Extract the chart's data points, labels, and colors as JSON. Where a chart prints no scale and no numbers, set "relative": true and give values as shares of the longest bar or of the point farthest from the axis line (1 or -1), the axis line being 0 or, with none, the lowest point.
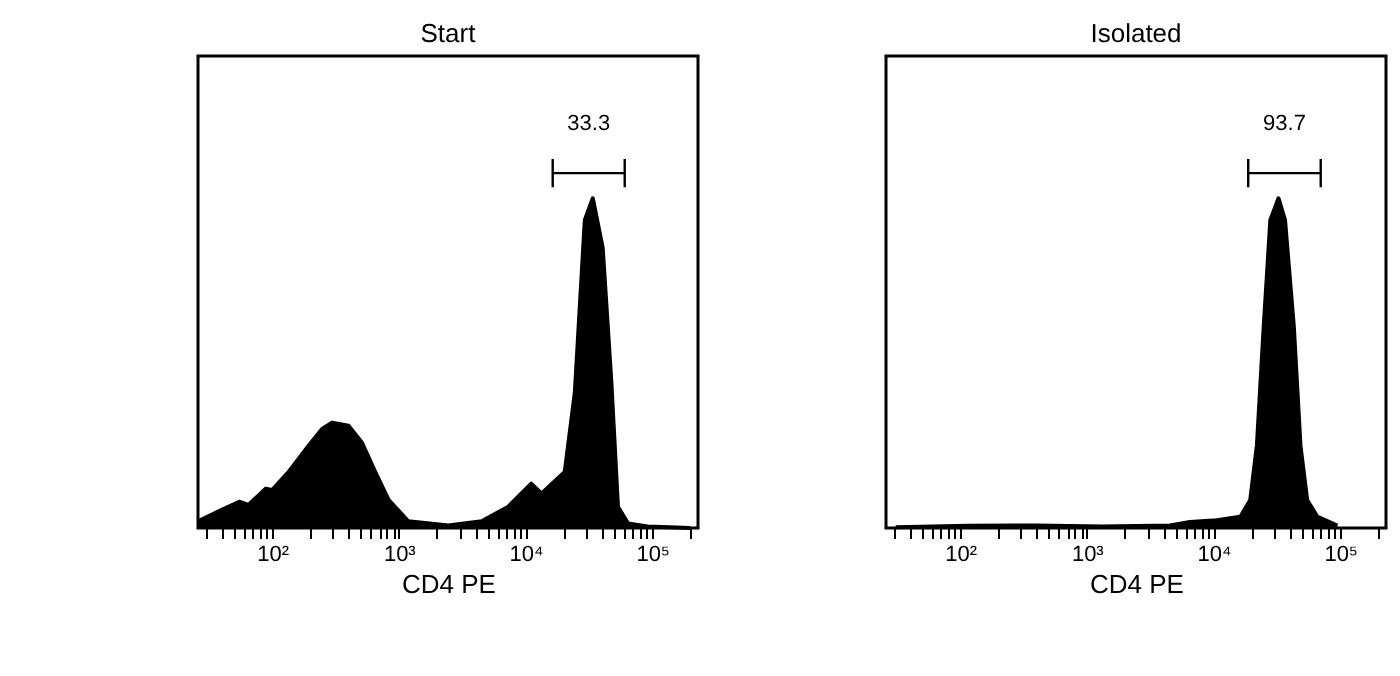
{
  "chart_data": [
    {
      "type": "area",
      "title": "Start",
      "xlabel": "CD4 PE",
      "relative": true,
      "log": "x",
      "tick_labels": "x",
      "grid": false,
      "xlim": [
        26,
        230000
      ],
      "xticks": [
        {
          "value": 30,
          "label": null
        },
        {
          "value": 40,
          "label": null
        },
        {
          "value": 50,
          "label": null
        },
        {
          "value": 60,
          "label": null
        },
        {
          "value": 70,
          "label": null
        },
        {
          "value": 80,
          "label": null
        },
        {
          "value": 90,
          "label": null
        },
        {
          "value": 100,
          "label": "10²"
        },
        {
          "value": 200,
          "label": null
        },
        {
          "value": 300,
          "label": null
        },
        {
          "value": 400,
          "label": null
        },
        {
          "value": 500,
          "label": null
        },
        {
          "value": 600,
          "label": null
        },
        {
          "value": 700,
          "label": null
        },
        {
          "value": 800,
          "label": null
        },
        {
          "value": 900,
          "label": null
        },
        {
          "value": 1000,
          "label": "10³"
        },
        {
          "value": 2000,
          "label": null
        },
        {
          "value": 3000,
          "label": null
        },
        {
          "value": 4000,
          "label": null
        },
        {
          "value": 5000,
          "label": null
        },
        {
          "value": 6000,
          "label": null
        },
        {
          "value": 7000,
          "label": null
        },
        {
          "value": 8000,
          "label": null
        },
        {
          "value": 9000,
          "label": null
        },
        {
          "value": 10000,
          "label": "10⁴"
        },
        {
          "value": 20000,
          "label": null
        },
        {
          "value": 30000,
          "label": null
        },
        {
          "value": 40000,
          "label": null
        },
        {
          "value": 50000,
          "label": null
        },
        {
          "value": 60000,
          "label": null
        },
        {
          "value": 70000,
          "label": null
        },
        {
          "value": 80000,
          "label": null
        },
        {
          "value": 90000,
          "label": null
        },
        {
          "value": 100000,
          "label": "10⁵"
        },
        {
          "value": 200000,
          "label": null
        }
      ],
      "annotations": [
        "33.3"
      ],
      "series": [
        {
          "color": "#000000",
          "x": [
            26,
            40,
            55,
            65,
            89,
            100,
            135,
            194,
            248,
            297,
            401,
            511,
            651,
            830,
            1190,
            2460,
            4510,
            7310,
            11100,
            13400,
            20400,
            24500,
            29400,
            34000,
            40700,
            47500,
            53700,
            64300,
            92300,
            200000
          ],
          "values": [
            0.019,
            0.051,
            0.074,
            0.065,
            0.111,
            0.107,
            0.158,
            0.232,
            0.279,
            0.297,
            0.288,
            0.241,
            0.158,
            0.079,
            0.019,
            0.007,
            0.019,
            0.06,
            0.125,
            0.097,
            0.158,
            0.381,
            0.868,
            0.929,
            0.789,
            0.418,
            0.06,
            0.013,
            0.004,
            0.0
          ]
        },
        {
          "type": "line",
          "color": "#000000",
          "marker": "none",
          "x": [
            16400,
            60700
          ],
          "values": [
            1.0,
            1.0
          ]
        }
      ]
    },
    {
      "type": "area",
      "title": "Isolated",
      "xlabel": "CD4 PE",
      "relative": true,
      "log": "x",
      "tick_labels": "x",
      "grid": false,
      "xlim": [
        26,
        230000
      ],
      "xticks": [
        {
          "value": 30,
          "label": null
        },
        {
          "value": 40,
          "label": null
        },
        {
          "value": 50,
          "label": null
        },
        {
          "value": 60,
          "label": null
        },
        {
          "value": 70,
          "label": null
        },
        {
          "value": 80,
          "label": null
        },
        {
          "value": 90,
          "label": null
        },
        {
          "value": 100,
          "label": "10²"
        },
        {
          "value": 200,
          "label": null
        },
        {
          "value": 300,
          "label": null
        },
        {
          "value": 400,
          "label": null
        },
        {
          "value": 500,
          "label": null
        },
        {
          "value": 600,
          "label": null
        },
        {
          "value": 700,
          "label": null
        },
        {
          "value": 800,
          "label": null
        },
        {
          "value": 900,
          "label": null
        },
        {
          "value": 1000,
          "label": "10³"
        },
        {
          "value": 2000,
          "label": null
        },
        {
          "value": 3000,
          "label": null
        },
        {
          "value": 4000,
          "label": null
        },
        {
          "value": 5000,
          "label": null
        },
        {
          "value": 6000,
          "label": null
        },
        {
          "value": 7000,
          "label": null
        },
        {
          "value": 8000,
          "label": null
        },
        {
          "value": 9000,
          "label": null
        },
        {
          "value": 10000,
          "label": "10⁴"
        },
        {
          "value": 20000,
          "label": null
        },
        {
          "value": 30000,
          "label": null
        },
        {
          "value": 40000,
          "label": null
        },
        {
          "value": 50000,
          "label": null
        },
        {
          "value": 60000,
          "label": null
        },
        {
          "value": 70000,
          "label": null
        },
        {
          "value": 80000,
          "label": null
        },
        {
          "value": 90000,
          "label": null
        },
        {
          "value": 100000,
          "label": "10⁵"
        },
        {
          "value": 200000,
          "label": null
        }
      ],
      "annotations": [
        "93.7"
      ],
      "series": [
        {
          "color": "#000000",
          "x": [
            31,
            117,
            395,
            1340,
            4530,
            6520,
            10600,
            16300,
            19500,
            22000,
            24900,
            28100,
            32600,
            36700,
            43100,
            48600,
            54900,
            65900,
            95000
          ],
          "values": [
            0.002,
            0.006,
            0.007,
            0.004,
            0.007,
            0.017,
            0.022,
            0.032,
            0.079,
            0.232,
            0.566,
            0.868,
            0.929,
            0.868,
            0.566,
            0.232,
            0.079,
            0.032,
            0.007
          ]
        },
        {
          "type": "line",
          "color": "#000000",
          "marker": "none",
          "x": [
            18800,
            70200
          ],
          "values": [
            1.0,
            1.0
          ]
        }
      ]
    }
  ]
}
